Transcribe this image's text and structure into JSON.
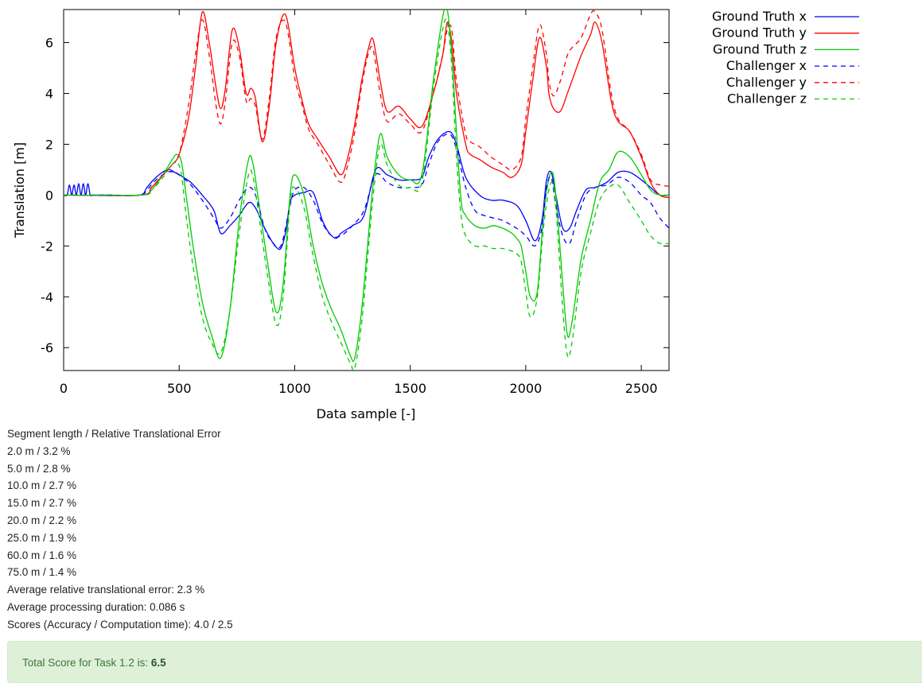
{
  "chart_data": {
    "type": "line",
    "xlabel": "Data sample [-]",
    "ylabel": "Translation [m]",
    "xlim": [
      0,
      2620
    ],
    "ylim": [
      -6.9,
      7.3
    ],
    "xticks": [
      0,
      500,
      1000,
      1500,
      2000,
      2500
    ],
    "yticks": [
      -6,
      -4,
      -2,
      0,
      2,
      4,
      6
    ],
    "grid": false,
    "legend": "outside-right-top",
    "series": [
      {
        "name": "Ground Truth x",
        "color": "#0000ff",
        "dash": "solid",
        "x": [
          0,
          15,
          25,
          35,
          45,
          55,
          65,
          75,
          85,
          95,
          105,
          115,
          125,
          140,
          200,
          330,
          360,
          400,
          450,
          480,
          500,
          550,
          600,
          650,
          680,
          720,
          760,
          800,
          830,
          870,
          900,
          920,
          940,
          960,
          980,
          1000,
          1040,
          1080,
          1120,
          1150,
          1180,
          1200,
          1250,
          1300,
          1350,
          1400,
          1450,
          1500,
          1550,
          1580,
          1620,
          1670,
          1700,
          1740,
          1800,
          1850,
          1900,
          1960,
          2000,
          2040,
          2070,
          2090,
          2110,
          2130,
          2160,
          2190,
          2220,
          2260,
          2300,
          2350,
          2400,
          2450,
          2500,
          2540,
          2580,
          2620
        ],
        "y": [
          0,
          0,
          0.4,
          0,
          0.4,
          0,
          0.45,
          0,
          0.45,
          0,
          0.45,
          0,
          0,
          0,
          0,
          0,
          0.3,
          0.7,
          1,
          0.9,
          0.8,
          0.5,
          0,
          -0.6,
          -1.5,
          -1.2,
          -0.8,
          -0.3,
          -0.5,
          -1.3,
          -1.8,
          -2.05,
          -2.1,
          -1.5,
          -0.3,
          0,
          0.1,
          0.1,
          -1,
          -1.5,
          -1.7,
          -1.5,
          -1.2,
          -0.8,
          1,
          0.8,
          0.6,
          0.6,
          0.7,
          1.5,
          2.2,
          2.5,
          2,
          0.7,
          0,
          -0.2,
          -0.2,
          -0.4,
          -1,
          -1.8,
          -1,
          0.6,
          0.9,
          0,
          -1.3,
          -1.3,
          -0.6,
          0.2,
          0.3,
          0.5,
          0.9,
          0.9,
          0.6,
          0.3,
          0,
          0
        ]
      },
      {
        "name": "Ground Truth y",
        "color": "#ff0000",
        "dash": "solid",
        "x": [
          0,
          330,
          380,
          430,
          470,
          500,
          540,
          570,
          600,
          630,
          660,
          680,
          700,
          730,
          760,
          790,
          810,
          830,
          860,
          890,
          920,
          960,
          1000,
          1030,
          1060,
          1100,
          1150,
          1200,
          1230,
          1260,
          1290,
          1320,
          1340,
          1370,
          1400,
          1450,
          1500,
          1550,
          1600,
          1640,
          1660,
          1680,
          1700,
          1740,
          1760,
          1800,
          1850,
          1900,
          1940,
          1980,
          2000,
          2030,
          2060,
          2090,
          2100,
          2120,
          2150,
          2180,
          2200,
          2240,
          2280,
          2300,
          2330,
          2370,
          2400,
          2450,
          2500,
          2540,
          2580,
          2620
        ],
        "y": [
          0,
          0,
          0.3,
          0.8,
          1.2,
          1.6,
          3,
          5,
          7.2,
          6,
          4.2,
          3.4,
          4.2,
          6.5,
          5.8,
          4,
          4.2,
          3.8,
          2.1,
          3.5,
          6,
          7.1,
          5,
          3.8,
          2.8,
          2.2,
          1.5,
          0.8,
          1.5,
          2.8,
          4.5,
          5.8,
          6.1,
          4.5,
          3.3,
          3.5,
          3,
          2.7,
          4,
          5.5,
          6.8,
          6,
          4,
          2,
          1.6,
          1.4,
          1.1,
          0.9,
          0.7,
          1.2,
          2.5,
          4.5,
          6.2,
          5,
          4,
          3.4,
          3.3,
          4,
          4.5,
          5.5,
          6.3,
          6.8,
          6,
          3.7,
          2.9,
          2.5,
          1.5,
          0.5,
          0,
          -0.1
        ]
      },
      {
        "name": "Ground Truth z",
        "color": "#00cc00",
        "dash": "solid",
        "x": [
          0,
          330,
          380,
          430,
          470,
          490,
          510,
          530,
          560,
          600,
          640,
          680,
          720,
          760,
          800,
          820,
          840,
          880,
          920,
          950,
          980,
          1000,
          1040,
          1080,
          1120,
          1160,
          1200,
          1240,
          1260,
          1290,
          1320,
          1340,
          1370,
          1400,
          1450,
          1500,
          1550,
          1600,
          1640,
          1660,
          1680,
          1700,
          1720,
          1740,
          1780,
          1820,
          1860,
          1900,
          1940,
          1960,
          1980,
          2000,
          2020,
          2050,
          2080,
          2110,
          2130,
          2160,
          2180,
          2200,
          2240,
          2280,
          2320,
          2360,
          2400,
          2450,
          2500,
          2540,
          2580,
          2620
        ],
        "y": [
          0,
          0,
          0.2,
          0.8,
          1.4,
          1.6,
          1.3,
          0,
          -2,
          -4.2,
          -5.5,
          -6.4,
          -4.5,
          -1,
          1.4,
          1.2,
          0,
          -2.5,
          -4.6,
          -3.5,
          0,
          0.8,
          0,
          -2,
          -3.5,
          -4.5,
          -5.3,
          -6.3,
          -6.4,
          -4.5,
          -1.5,
          0.5,
          2.4,
          1.5,
          0.8,
          0.6,
          0.8,
          4.5,
          7,
          7.3,
          5.5,
          2.5,
          -0.2,
          -0.8,
          -1.2,
          -1.3,
          -1.2,
          -1.3,
          -1.5,
          -1.7,
          -2,
          -3,
          -4,
          -3.8,
          -0.5,
          0.9,
          0,
          -3.5,
          -5.5,
          -5,
          -2.5,
          -1,
          0.5,
          1,
          1.7,
          1.5,
          0.8,
          0.2,
          0,
          0
        ]
      },
      {
        "name": "Challenger x",
        "color": "#0000ff",
        "dash": "dashed",
        "x": [
          0,
          200,
          330,
          360,
          400,
          450,
          480,
          500,
          550,
          600,
          650,
          680,
          720,
          760,
          800,
          830,
          870,
          900,
          940,
          980,
          1000,
          1040,
          1080,
          1120,
          1160,
          1200,
          1250,
          1300,
          1350,
          1400,
          1450,
          1500,
          1550,
          1580,
          1620,
          1670,
          1700,
          1740,
          1780,
          1820,
          1860,
          1900,
          1960,
          2000,
          2040,
          2070,
          2090,
          2110,
          2130,
          2160,
          2190,
          2220,
          2260,
          2300,
          2350,
          2400,
          2450,
          2500,
          2540,
          2580,
          2620
        ],
        "y": [
          0,
          0,
          0,
          0.2,
          0.6,
          0.9,
          0.9,
          0.8,
          0.4,
          -0.2,
          -0.9,
          -1.3,
          -0.9,
          -0.2,
          0.3,
          0,
          -1.3,
          -1.8,
          -2,
          -0.4,
          0.2,
          0.3,
          -0.2,
          -1.1,
          -1.6,
          -1.6,
          -1.2,
          -0.6,
          0.8,
          0.5,
          0.3,
          0.3,
          0.4,
          1.2,
          2.1,
          2.4,
          1.8,
          0.3,
          -0.6,
          -0.8,
          -0.9,
          -1,
          -1.3,
          -1.6,
          -2,
          -1.3,
          0.3,
          0.7,
          -0.4,
          -1.6,
          -1.9,
          -1,
          0,
          0.3,
          0.4,
          0.7,
          0.5,
          0,
          -0.3,
          -0.9,
          -1.3
        ]
      },
      {
        "name": "Challenger y",
        "color": "#ff0000",
        "dash": "dashed",
        "x": [
          0,
          330,
          380,
          430,
          470,
          500,
          540,
          570,
          600,
          630,
          660,
          680,
          700,
          730,
          760,
          790,
          810,
          830,
          860,
          890,
          920,
          960,
          1000,
          1030,
          1060,
          1100,
          1150,
          1200,
          1230,
          1260,
          1290,
          1320,
          1340,
          1370,
          1400,
          1450,
          1500,
          1550,
          1600,
          1640,
          1660,
          1680,
          1700,
          1740,
          1760,
          1800,
          1850,
          1900,
          1940,
          1980,
          2000,
          2030,
          2060,
          2090,
          2100,
          2120,
          2150,
          2180,
          2200,
          2240,
          2280,
          2300,
          2330,
          2370,
          2400,
          2450,
          2500,
          2540,
          2580,
          2620
        ],
        "y": [
          0,
          0,
          0.3,
          0.8,
          1.2,
          1.6,
          3.5,
          5.5,
          6.9,
          5.5,
          3.5,
          2.8,
          3.7,
          6,
          5.5,
          3.7,
          3.8,
          3.5,
          2.2,
          3.8,
          6.2,
          6.8,
          4.6,
          3.6,
          2.6,
          2,
          1.2,
          0.5,
          1.2,
          2.5,
          4.3,
          5.6,
          5.7,
          4,
          2.9,
          3.2,
          2.8,
          2.5,
          4,
          5.5,
          6.5,
          6.5,
          4.5,
          2.4,
          2.1,
          1.9,
          1.5,
          1.2,
          1,
          1.5,
          3,
          5,
          6.7,
          5.5,
          4.5,
          3.9,
          4.5,
          5.5,
          5.8,
          6.2,
          7.1,
          7.2,
          6.5,
          4,
          3,
          2.5,
          1.6,
          0.6,
          0.4,
          0.35
        ]
      },
      {
        "name": "Challenger z",
        "color": "#00cc00",
        "dash": "dashed",
        "x": [
          0,
          330,
          380,
          430,
          470,
          490,
          510,
          530,
          560,
          600,
          640,
          680,
          720,
          760,
          800,
          820,
          840,
          880,
          920,
          950,
          980,
          1000,
          1040,
          1080,
          1120,
          1160,
          1200,
          1240,
          1260,
          1290,
          1320,
          1340,
          1370,
          1400,
          1450,
          1500,
          1550,
          1600,
          1640,
          1660,
          1680,
          1700,
          1720,
          1740,
          1780,
          1820,
          1860,
          1900,
          1940,
          1960,
          1980,
          2000,
          2020,
          2050,
          2080,
          2110,
          2130,
          2160,
          2180,
          2200,
          2240,
          2280,
          2320,
          2360,
          2400,
          2450,
          2500,
          2540,
          2580,
          2620
        ],
        "y": [
          0,
          0,
          0.2,
          0.7,
          1.2,
          1.3,
          0.8,
          -0.8,
          -2.8,
          -4.8,
          -5.8,
          -6.2,
          -4.5,
          -1.5,
          0.8,
          0.7,
          -0.5,
          -3,
          -5.1,
          -4,
          -0.3,
          0.3,
          -0.5,
          -2.4,
          -4,
          -5,
          -5.8,
          -6.6,
          -6.8,
          -5,
          -2,
          0,
          2,
          1.2,
          0.4,
          0.3,
          0.5,
          4.2,
          6.5,
          6.8,
          5,
          1.5,
          -0.8,
          -1.6,
          -2,
          -2,
          -2.1,
          -2.1,
          -2.2,
          -2.3,
          -2.6,
          -3.8,
          -4.8,
          -4,
          -1,
          0.5,
          -0.5,
          -4.5,
          -6.3,
          -5.8,
          -3,
          -1.5,
          -0.2,
          0.3,
          0.4,
          -0.3,
          -1,
          -1.6,
          -1.9,
          -1.9
        ]
      }
    ]
  },
  "stats": {
    "header": "Segment length / Relative Translational Error",
    "segments": [
      "2.0 m / 3.2 %",
      "5.0 m / 2.8 %",
      "10.0 m / 2.7 %",
      "15.0 m / 2.7 %",
      "20.0 m / 2.2 %",
      "25.0 m / 1.9 %",
      "60.0 m / 1.6 %",
      "75.0 m / 1.4 %"
    ],
    "avg_error": "Average relative translational error: 2.3 %",
    "avg_duration": "Average processing duration: 0.086 s",
    "scores": "Scores (Accuracy / Computation time): 4.0 / 2.5"
  },
  "score_box": {
    "label": "Total Score for Task 1.2 is:",
    "value": "6.5"
  }
}
